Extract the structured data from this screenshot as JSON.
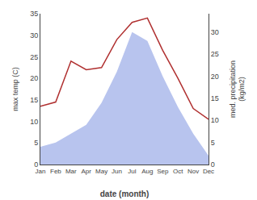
{
  "chart_data": {
    "type": "line",
    "categories": [
      "Jan",
      "Feb",
      "Mar",
      "Apr",
      "May",
      "Jun",
      "Jul",
      "Aug",
      "Sep",
      "Oct",
      "Nov",
      "Dec"
    ],
    "xlabel": "date (month)",
    "ylabel": "max temp (C)",
    "y2label": "med. precipitation\n(kg/m2)",
    "series": [
      {
        "type": "area",
        "axis": "y2",
        "color": "#b8c4ee",
        "values": [
          4.0,
          5.0,
          7.0,
          9.0,
          14.0,
          21.0,
          30.0,
          28.0,
          20.0,
          13.0,
          7.0,
          2.0
        ]
      },
      {
        "type": "line",
        "color": "#b03030",
        "values": [
          13.5,
          14.5,
          24.0,
          22.0,
          22.5,
          29.0,
          33.0,
          34.0,
          26.5,
          20.0,
          13.0,
          10.5
        ]
      }
    ],
    "ylim": [
      0,
      35
    ],
    "yticks": [
      0,
      5,
      10,
      15,
      20,
      25,
      30,
      35
    ],
    "y2lim": [
      0,
      34.17
    ],
    "y2ticks": [
      0,
      5,
      10,
      15,
      20,
      25,
      30
    ],
    "grid": false
  }
}
